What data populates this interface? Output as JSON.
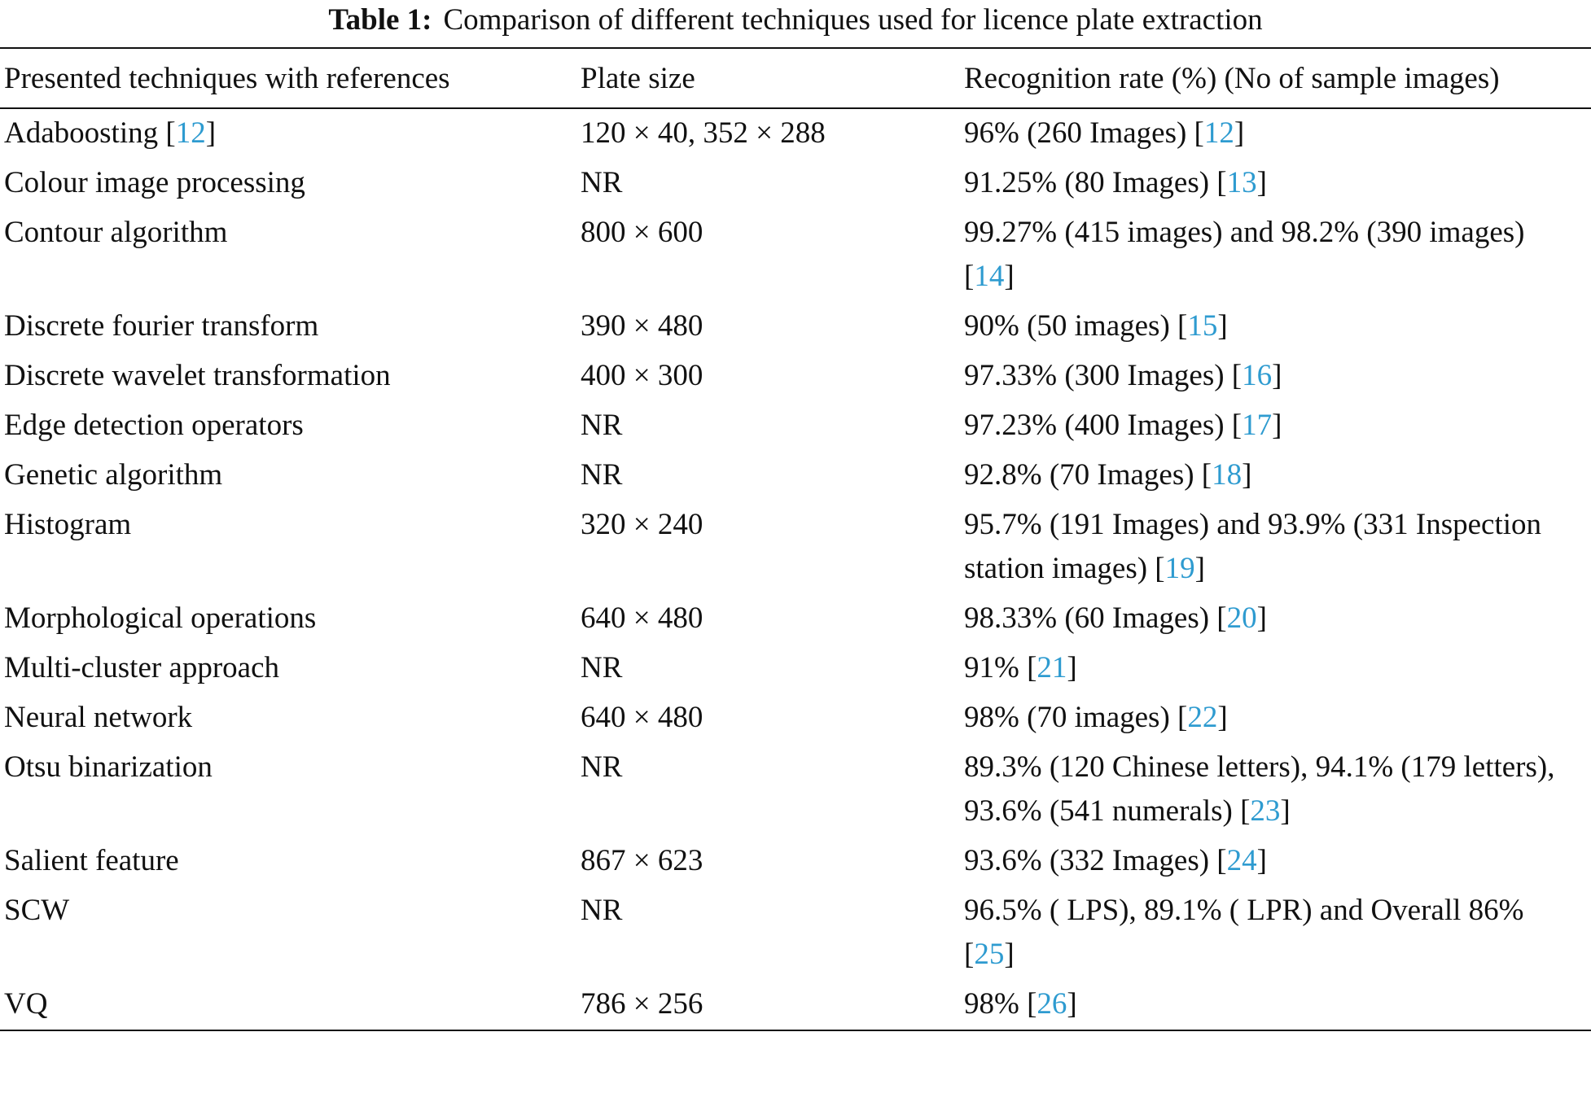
{
  "title": {
    "label": "Table 1:",
    "text": "Comparison of different techniques used for licence plate extraction"
  },
  "table": {
    "header": [
      "Presented techniques with references",
      "Plate size",
      "Recognition rate (%) (No of sample images)"
    ],
    "rows": [
      {
        "technique": [
          {
            "text": "Adaboosting ["
          },
          {
            "link": "12"
          },
          {
            "text": "]"
          }
        ],
        "plate_size": [
          {
            "text": "120 × 40, 352 × 288"
          }
        ],
        "rate": [
          {
            "text": "96% (260 Images) ["
          },
          {
            "link": "12"
          },
          {
            "text": "]"
          }
        ]
      },
      {
        "technique": [
          {
            "text": "Colour image processing"
          }
        ],
        "plate_size": [
          {
            "text": "NR"
          }
        ],
        "rate": [
          {
            "text": "91.25% (80 Images) ["
          },
          {
            "link": "13"
          },
          {
            "text": "]"
          }
        ]
      },
      {
        "technique": [
          {
            "text": "Contour algorithm"
          }
        ],
        "plate_size": [
          {
            "text": "800 × 600"
          }
        ],
        "rate": [
          {
            "text": "99.27% (415 images) and 98.2% (390 images) ["
          },
          {
            "link": "14"
          },
          {
            "text": "]"
          }
        ]
      },
      {
        "technique": [
          {
            "text": "Discrete fourier transform"
          }
        ],
        "plate_size": [
          {
            "text": "390 × 480"
          }
        ],
        "rate": [
          {
            "text": "90% (50 images) ["
          },
          {
            "link": "15"
          },
          {
            "text": "]"
          }
        ]
      },
      {
        "technique": [
          {
            "text": "Discrete wavelet transformation"
          }
        ],
        "plate_size": [
          {
            "text": "400 × 300"
          }
        ],
        "rate": [
          {
            "text": "97.33% (300 Images) ["
          },
          {
            "link": "16"
          },
          {
            "text": "]"
          }
        ]
      },
      {
        "technique": [
          {
            "text": "Edge detection operators"
          }
        ],
        "plate_size": [
          {
            "text": "NR"
          }
        ],
        "rate": [
          {
            "text": "97.23% (400 Images) ["
          },
          {
            "link": "17"
          },
          {
            "text": "]"
          }
        ]
      },
      {
        "technique": [
          {
            "text": "Genetic algorithm"
          }
        ],
        "plate_size": [
          {
            "text": "NR"
          }
        ],
        "rate": [
          {
            "text": "92.8% (70 Images) ["
          },
          {
            "link": "18"
          },
          {
            "text": "]"
          }
        ]
      },
      {
        "technique": [
          {
            "text": "Histogram"
          }
        ],
        "plate_size": [
          {
            "text": "320 × 240"
          }
        ],
        "rate": [
          {
            "text": "95.7% (191 Images) and 93.9% (331 Inspection station images) ["
          },
          {
            "link": "19"
          },
          {
            "text": "]"
          }
        ]
      },
      {
        "technique": [
          {
            "text": "Morphological operations"
          }
        ],
        "plate_size": [
          {
            "text": "640 × 480"
          }
        ],
        "rate": [
          {
            "text": "98.33% (60 Images) ["
          },
          {
            "link": "20"
          },
          {
            "text": "]"
          }
        ]
      },
      {
        "technique": [
          {
            "text": "Multi-cluster approach"
          }
        ],
        "plate_size": [
          {
            "text": "NR"
          }
        ],
        "rate": [
          {
            "text": "91% ["
          },
          {
            "link": "21"
          },
          {
            "text": "]"
          }
        ]
      },
      {
        "technique": [
          {
            "text": "Neural network"
          }
        ],
        "plate_size": [
          {
            "text": "640 × 480"
          }
        ],
        "rate": [
          {
            "text": "98% (70 images) ["
          },
          {
            "link": "22"
          },
          {
            "text": "]"
          }
        ]
      },
      {
        "technique": [
          {
            "text": "Otsu binarization"
          }
        ],
        "plate_size": [
          {
            "text": "NR"
          }
        ],
        "rate": [
          {
            "text": "89.3% (120 Chinese letters), 94.1% (179 letters), 93.6% (541 numerals) ["
          },
          {
            "link": "23"
          },
          {
            "text": "]"
          }
        ]
      },
      {
        "technique": [
          {
            "text": "Salient feature"
          }
        ],
        "plate_size": [
          {
            "text": "867 × 623"
          }
        ],
        "rate": [
          {
            "text": "93.6% (332 Images) ["
          },
          {
            "link": "24"
          },
          {
            "text": "]"
          }
        ]
      },
      {
        "technique": [
          {
            "text": "SCW"
          }
        ],
        "plate_size": [
          {
            "text": "NR"
          }
        ],
        "rate": [
          {
            "text": "96.5% ( LPS), 89.1% ( LPR) and Overall 86% ["
          },
          {
            "link": "25"
          },
          {
            "text": "]"
          }
        ]
      },
      {
        "technique": [
          {
            "text": "VQ"
          }
        ],
        "plate_size": [
          {
            "text": "786 × 256"
          }
        ],
        "rate": [
          {
            "text": "98% ["
          },
          {
            "link": "26"
          },
          {
            "text": "]"
          }
        ]
      }
    ]
  }
}
